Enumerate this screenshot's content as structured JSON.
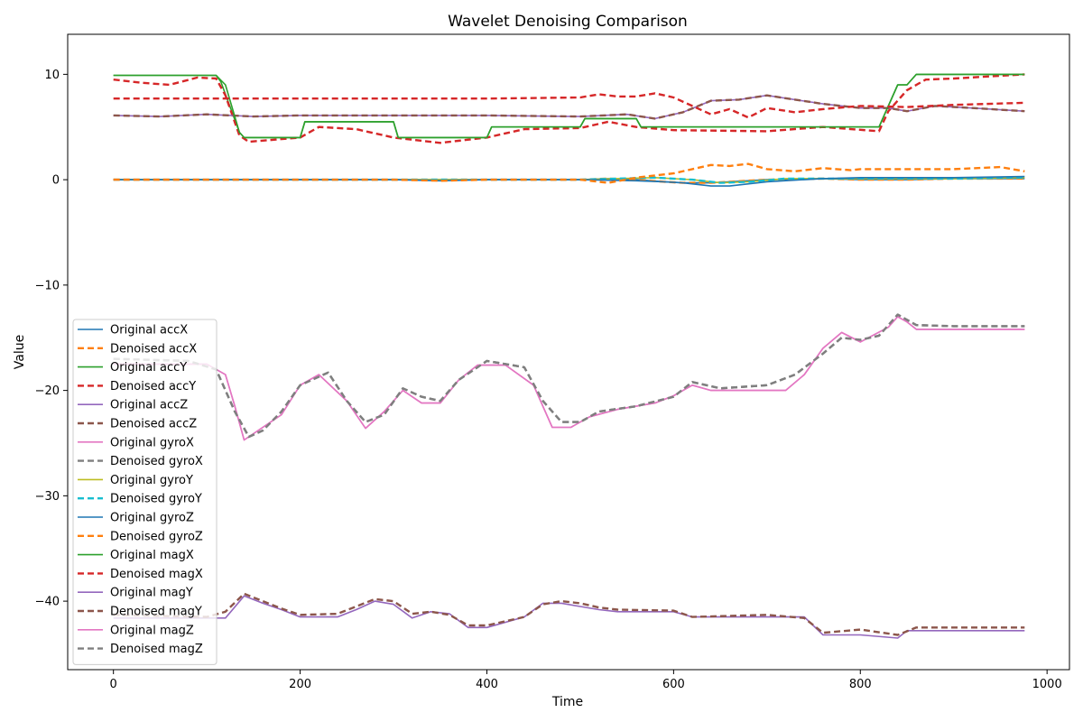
{
  "chart_data": {
    "type": "line",
    "title": "Wavelet Denoising Comparison",
    "xlabel": "Time",
    "ylabel": "Value",
    "xlim": [
      -49,
      1024
    ],
    "ylim": [
      -46.5,
      13.8
    ],
    "xticks": [
      0,
      200,
      400,
      600,
      800,
      1000
    ],
    "yticks": [
      10,
      0,
      -10,
      -20,
      -30,
      -40
    ],
    "xtick_labels": [
      "0",
      "200",
      "400",
      "600",
      "800",
      "1000"
    ],
    "ytick_labels": [
      "10",
      "0",
      "−10",
      "−20",
      "−30",
      "−40"
    ],
    "grid": false,
    "legend_position": "lower-left",
    "series": [
      {
        "name": "Original accX",
        "color": "#1f77b4",
        "style": "solid",
        "x": [
          0,
          500,
          530,
          560,
          590,
          610,
          640,
          660,
          700,
          760,
          800,
          850,
          900,
          976
        ],
        "y": [
          0.0,
          0.0,
          0.1,
          0.0,
          -0.2,
          -0.3,
          -0.3,
          -0.2,
          0.0,
          0.1,
          0.0,
          0.0,
          0.1,
          0.1
        ]
      },
      {
        "name": "Denoised accX",
        "color": "#ff7f0e",
        "style": "dashed",
        "x": [
          0,
          500,
          530,
          560,
          590,
          610,
          640,
          660,
          700,
          760,
          800,
          850,
          900,
          976
        ],
        "y": [
          0.0,
          0.0,
          0.1,
          0.0,
          -0.2,
          -0.3,
          -0.3,
          -0.2,
          0.0,
          0.1,
          0.0,
          0.0,
          0.1,
          0.1
        ]
      },
      {
        "name": "Original accY",
        "color": "#2ca02c",
        "style": "solid",
        "x": [
          0,
          110,
          115,
          135,
          140,
          200,
          205,
          300,
          305,
          400,
          405,
          500,
          505,
          560,
          565,
          820,
          825,
          840,
          850,
          860,
          940,
          976
        ],
        "y": [
          9.9,
          9.9,
          9.3,
          4.5,
          4.0,
          4.0,
          5.5,
          5.5,
          4.0,
          4.0,
          5.0,
          5.0,
          5.8,
          5.8,
          5.0,
          5.0,
          6.0,
          9.0,
          9.0,
          10.0,
          10.0,
          10.0
        ]
      },
      {
        "name": "Denoised accY",
        "color": "#d62728",
        "style": "dashed",
        "x": [
          0,
          30,
          60,
          90,
          110,
          120,
          135,
          145,
          200,
          220,
          260,
          300,
          350,
          400,
          440,
          500,
          530,
          560,
          600,
          700,
          760,
          820,
          830,
          850,
          870,
          900,
          976
        ],
        "y": [
          9.5,
          9.2,
          9.0,
          9.7,
          9.6,
          8.0,
          4.2,
          3.6,
          4.0,
          5.0,
          4.8,
          4.0,
          3.5,
          4.0,
          4.8,
          4.9,
          5.5,
          5.0,
          4.7,
          4.6,
          5.0,
          4.6,
          6.5,
          8.5,
          9.5,
          9.6,
          10.0
        ]
      },
      {
        "name": "Original accZ",
        "color": "#9467bd",
        "style": "solid",
        "x": [
          0,
          50,
          100,
          150,
          200,
          300,
          400,
          500,
          550,
          580,
          610,
          640,
          670,
          700,
          730,
          760,
          800,
          830,
          850,
          880,
          920,
          976
        ],
        "y": [
          6.1,
          6.0,
          6.2,
          6.0,
          6.1,
          6.1,
          6.1,
          6.0,
          6.2,
          5.8,
          6.4,
          7.5,
          7.6,
          8.0,
          7.6,
          7.2,
          6.8,
          6.8,
          6.5,
          7.0,
          6.8,
          6.5
        ]
      },
      {
        "name": "Denoised accZ",
        "color": "#8c564b",
        "style": "dashed",
        "x": [
          0,
          50,
          100,
          150,
          200,
          300,
          400,
          500,
          550,
          580,
          610,
          640,
          670,
          700,
          730,
          760,
          800,
          830,
          850,
          880,
          920,
          976
        ],
        "y": [
          6.1,
          6.0,
          6.2,
          6.0,
          6.1,
          6.1,
          6.1,
          6.0,
          6.2,
          5.8,
          6.4,
          7.5,
          7.6,
          8.0,
          7.6,
          7.2,
          6.8,
          6.8,
          6.5,
          7.0,
          6.8,
          6.5
        ]
      },
      {
        "name": "Original gyroX",
        "color": "#e377c2",
        "style": "solid",
        "x": [
          0,
          100,
          120,
          130,
          140,
          160,
          180,
          200,
          220,
          250,
          270,
          290,
          310,
          330,
          350,
          370,
          390,
          420,
          450,
          470,
          490,
          510,
          540,
          580,
          600,
          620,
          640,
          680,
          720,
          740,
          760,
          780,
          800,
          830,
          840,
          850,
          860,
          976
        ],
        "y": [
          -17.5,
          -17.5,
          -18.5,
          -21.5,
          -24.7,
          -23.5,
          -22.3,
          -19.5,
          -18.5,
          -21.0,
          -23.6,
          -22.0,
          -20.0,
          -21.2,
          -21.2,
          -19.0,
          -17.6,
          -17.6,
          -19.5,
          -23.5,
          -23.5,
          -22.5,
          -21.8,
          -21.2,
          -20.5,
          -19.5,
          -20.0,
          -20.0,
          -20.0,
          -18.5,
          -16.0,
          -14.5,
          -15.4,
          -14.0,
          -13.0,
          -13.5,
          -14.2,
          -14.2
        ]
      },
      {
        "name": "Denoised gyroX",
        "color": "#7f7f7f",
        "style": "dashed",
        "x": [
          0,
          80,
          110,
          130,
          145,
          160,
          180,
          200,
          230,
          250,
          270,
          290,
          310,
          330,
          350,
          370,
          400,
          440,
          460,
          480,
          500,
          520,
          560,
          600,
          620,
          650,
          700,
          730,
          760,
          780,
          800,
          820,
          840,
          860,
          900,
          976
        ],
        "y": [
          -17.0,
          -17.2,
          -18.0,
          -22.0,
          -24.4,
          -23.8,
          -22.0,
          -19.5,
          -18.3,
          -21.0,
          -23.0,
          -22.3,
          -19.8,
          -20.6,
          -21.0,
          -19.0,
          -17.2,
          -17.8,
          -21.0,
          -23.0,
          -23.0,
          -22.0,
          -21.5,
          -20.6,
          -19.2,
          -19.8,
          -19.5,
          -18.5,
          -16.5,
          -15.0,
          -15.2,
          -14.8,
          -12.8,
          -13.8,
          -13.9,
          -13.9
        ]
      },
      {
        "name": "Original gyroY",
        "color": "#bcbd22",
        "style": "solid",
        "x": [
          0,
          500,
          540,
          580,
          620,
          650,
          680,
          720,
          800,
          900,
          976
        ],
        "y": [
          0.0,
          0.0,
          0.1,
          0.2,
          0.0,
          -0.3,
          -0.2,
          0.1,
          0.1,
          0.1,
          0.2
        ]
      },
      {
        "name": "Denoised gyroY",
        "color": "#17becf",
        "style": "dashed",
        "x": [
          0,
          500,
          540,
          580,
          620,
          650,
          680,
          720,
          800,
          900,
          976
        ],
        "y": [
          0.0,
          0.0,
          0.1,
          0.2,
          0.0,
          -0.3,
          -0.2,
          0.1,
          0.1,
          0.1,
          0.2
        ]
      },
      {
        "name": "Original gyroZ",
        "color": "#1f77b4",
        "style": "solid",
        "x": [
          0,
          300,
          350,
          400,
          500,
          560,
          590,
          610,
          640,
          660,
          700,
          760,
          800,
          900,
          976
        ],
        "y": [
          0.0,
          0.0,
          -0.1,
          0.0,
          0.0,
          -0.1,
          -0.2,
          -0.3,
          -0.6,
          -0.6,
          -0.2,
          0.1,
          0.2,
          0.2,
          0.3
        ]
      },
      {
        "name": "Denoised gyroZ",
        "color": "#ff7f0e",
        "style": "dashed",
        "x": [
          0,
          300,
          350,
          400,
          500,
          530,
          560,
          600,
          620,
          640,
          660,
          680,
          700,
          730,
          760,
          790,
          800,
          850,
          900,
          950,
          976
        ],
        "y": [
          0.0,
          0.0,
          -0.1,
          0.0,
          0.0,
          -0.3,
          0.2,
          0.6,
          1.0,
          1.4,
          1.3,
          1.5,
          1.0,
          0.8,
          1.1,
          0.9,
          1.0,
          1.0,
          1.0,
          1.2,
          0.8
        ]
      },
      {
        "name": "Original magX",
        "color": "#2ca02c",
        "style": "solid",
        "x": [
          0,
          110,
          120,
          135,
          140,
          200,
          205,
          300,
          305,
          400,
          405,
          500,
          505,
          560,
          565,
          820,
          825,
          840,
          850,
          860,
          940,
          976
        ],
        "y": [
          9.9,
          9.9,
          9.0,
          4.5,
          4.0,
          4.0,
          5.5,
          5.5,
          4.0,
          4.0,
          5.0,
          5.0,
          5.8,
          5.8,
          5.0,
          5.0,
          6.0,
          9.0,
          9.0,
          10.0,
          10.0,
          10.0
        ]
      },
      {
        "name": "Denoised magX",
        "color": "#d62728",
        "style": "dashed",
        "x": [
          0,
          100,
          200,
          300,
          400,
          500,
          520,
          540,
          560,
          580,
          600,
          620,
          640,
          660,
          680,
          700,
          730,
          760,
          800,
          850,
          900,
          976
        ],
        "y": [
          7.7,
          7.7,
          7.7,
          7.7,
          7.7,
          7.8,
          8.1,
          7.9,
          7.9,
          8.2,
          7.8,
          7.0,
          6.2,
          6.7,
          5.9,
          6.8,
          6.4,
          6.7,
          7.0,
          6.9,
          7.1,
          7.3
        ]
      },
      {
        "name": "Original magY",
        "color": "#9467bd",
        "style": "solid",
        "x": [
          0,
          100,
          120,
          140,
          160,
          180,
          200,
          240,
          260,
          280,
          300,
          320,
          340,
          360,
          380,
          400,
          440,
          460,
          480,
          500,
          520,
          540,
          600,
          620,
          700,
          740,
          760,
          800,
          840,
          850,
          880,
          976
        ],
        "y": [
          -41.6,
          -41.6,
          -41.6,
          -39.5,
          -40.2,
          -40.8,
          -41.5,
          -41.5,
          -40.8,
          -40.0,
          -40.3,
          -41.6,
          -41.0,
          -41.2,
          -42.5,
          -42.5,
          -41.5,
          -40.2,
          -40.2,
          -40.5,
          -40.8,
          -41.0,
          -41.0,
          -41.5,
          -41.5,
          -41.5,
          -43.2,
          -43.2,
          -43.5,
          -42.8,
          -42.8,
          -42.8
        ]
      },
      {
        "name": "Denoised magY",
        "color": "#8c564b",
        "style": "dashed",
        "x": [
          0,
          100,
          120,
          140,
          160,
          180,
          200,
          240,
          260,
          280,
          300,
          320,
          340,
          360,
          380,
          400,
          440,
          460,
          480,
          500,
          520,
          540,
          600,
          620,
          700,
          740,
          760,
          800,
          840,
          860,
          900,
          976
        ],
        "y": [
          -41.3,
          -41.5,
          -41.0,
          -39.3,
          -40.0,
          -40.7,
          -41.3,
          -41.2,
          -40.5,
          -39.8,
          -40.0,
          -41.2,
          -41.0,
          -41.3,
          -42.3,
          -42.3,
          -41.5,
          -40.3,
          -40.0,
          -40.2,
          -40.6,
          -40.8,
          -40.9,
          -41.5,
          -41.3,
          -41.6,
          -43.0,
          -42.7,
          -43.2,
          -42.5,
          -42.5,
          -42.5
        ]
      },
      {
        "name": "Original magZ",
        "color": "#e377c2",
        "style": "solid",
        "x": [
          0,
          100,
          120,
          130,
          140,
          160,
          180,
          200,
          220,
          250,
          270,
          290,
          310,
          330,
          350,
          370,
          390,
          420,
          450,
          470,
          490,
          510,
          540,
          580,
          600,
          620,
          640,
          680,
          720,
          740,
          760,
          780,
          800,
          830,
          840,
          850,
          860,
          976
        ],
        "y": [
          -17.5,
          -17.5,
          -18.5,
          -21.5,
          -24.7,
          -23.5,
          -22.3,
          -19.5,
          -18.5,
          -21.0,
          -23.6,
          -22.0,
          -20.0,
          -21.2,
          -21.2,
          -19.0,
          -17.6,
          -17.6,
          -19.5,
          -23.5,
          -23.5,
          -22.5,
          -21.8,
          -21.2,
          -20.5,
          -19.5,
          -20.0,
          -20.0,
          -20.0,
          -18.5,
          -16.0,
          -14.5,
          -15.4,
          -14.0,
          -13.0,
          -13.5,
          -14.2,
          -14.2
        ]
      },
      {
        "name": "Denoised magZ",
        "color": "#7f7f7f",
        "style": "dashed",
        "x": [
          0,
          80,
          110,
          130,
          145,
          160,
          180,
          200,
          230,
          250,
          270,
          290,
          310,
          330,
          350,
          370,
          400,
          440,
          460,
          480,
          500,
          520,
          560,
          600,
          620,
          650,
          700,
          730,
          760,
          780,
          800,
          820,
          840,
          860,
          900,
          976
        ],
        "y": [
          -17.0,
          -17.2,
          -18.0,
          -22.0,
          -24.4,
          -23.8,
          -22.0,
          -19.5,
          -18.3,
          -21.0,
          -23.0,
          -22.3,
          -19.8,
          -20.6,
          -21.0,
          -19.0,
          -17.2,
          -17.8,
          -21.0,
          -23.0,
          -23.0,
          -22.0,
          -21.5,
          -20.6,
          -19.2,
          -19.8,
          -19.5,
          -18.5,
          -16.5,
          -15.0,
          -15.2,
          -14.8,
          -12.8,
          -13.8,
          -13.9,
          -13.9
        ]
      }
    ]
  }
}
